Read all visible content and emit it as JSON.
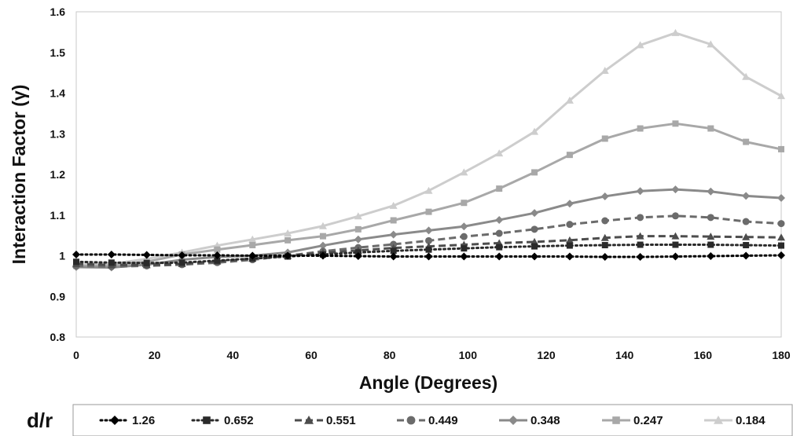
{
  "chart_data": {
    "type": "line",
    "xlabel": "Angle (Degrees)",
    "ylabel": "Interaction Factor (γ)",
    "xlim": [
      0,
      180
    ],
    "ylim": [
      0.8,
      1.6
    ],
    "xticks": [
      "0",
      "20",
      "40",
      "60",
      "80",
      "100",
      "120",
      "140",
      "160",
      "180"
    ],
    "yticks": [
      "0.8",
      "0.9",
      "1",
      "1.1",
      "1.2",
      "1.3",
      "1.4",
      "1.5",
      "1.6"
    ],
    "grid": false,
    "legend_title": "d/r",
    "legend_position": "bottom",
    "x": [
      0,
      9,
      18,
      27,
      36,
      45,
      54,
      63,
      72,
      81,
      90,
      99,
      108,
      117,
      126,
      135,
      144,
      153,
      162,
      171,
      180
    ],
    "series": [
      {
        "name": "1.26",
        "color": "#000000",
        "line": "dotted",
        "marker": "diamond",
        "values": [
          1.003,
          1.003,
          1.002,
          1.001,
          1.001,
          1.0,
          1.0,
          1.0,
          0.999,
          0.998,
          0.998,
          0.998,
          0.998,
          0.998,
          0.998,
          0.997,
          0.997,
          0.998,
          0.999,
          1.0,
          1.001
        ]
      },
      {
        "name": "0.652",
        "color": "#2a2a2a",
        "line": "dotted",
        "marker": "square",
        "values": [
          0.985,
          0.983,
          0.982,
          0.983,
          0.988,
          0.993,
          0.998,
          1.003,
          1.008,
          1.012,
          1.015,
          1.018,
          1.021,
          1.023,
          1.025,
          1.026,
          1.027,
          1.027,
          1.027,
          1.026,
          1.025
        ]
      },
      {
        "name": "0.551",
        "color": "#4d4d4d",
        "line": "dashed",
        "marker": "triangle",
        "values": [
          0.98,
          0.977,
          0.977,
          0.98,
          0.986,
          0.993,
          1.0,
          1.007,
          1.013,
          1.019,
          1.023,
          1.027,
          1.031,
          1.034,
          1.038,
          1.044,
          1.048,
          1.048,
          1.047,
          1.046,
          1.045
        ]
      },
      {
        "name": "0.449",
        "color": "#6b6b6b",
        "line": "dashed",
        "marker": "circle",
        "values": [
          0.975,
          0.973,
          0.975,
          0.978,
          0.983,
          0.99,
          1.0,
          1.011,
          1.02,
          1.028,
          1.037,
          1.047,
          1.055,
          1.065,
          1.077,
          1.086,
          1.094,
          1.098,
          1.094,
          1.084,
          1.079
        ]
      },
      {
        "name": "0.348",
        "color": "#8a8a8a",
        "line": "solid",
        "marker": "diamond",
        "values": [
          0.972,
          0.971,
          0.978,
          0.99,
          0.997,
          1.0,
          1.008,
          1.025,
          1.04,
          1.052,
          1.062,
          1.072,
          1.088,
          1.105,
          1.128,
          1.146,
          1.159,
          1.163,
          1.158,
          1.147,
          1.142
        ]
      },
      {
        "name": "0.247",
        "color": "#a8a8a8",
        "line": "solid",
        "marker": "square",
        "values": [
          0.975,
          0.976,
          0.985,
          1.003,
          1.015,
          1.026,
          1.038,
          1.048,
          1.065,
          1.087,
          1.108,
          1.13,
          1.165,
          1.205,
          1.248,
          1.288,
          1.313,
          1.325,
          1.313,
          1.28,
          1.262
        ]
      },
      {
        "name": "0.184",
        "color": "#cdcdcd",
        "line": "solid",
        "marker": "triangle",
        "values": [
          0.978,
          0.98,
          0.992,
          1.008,
          1.025,
          1.04,
          1.055,
          1.073,
          1.097,
          1.123,
          1.16,
          1.205,
          1.252,
          1.305,
          1.382,
          1.455,
          1.518,
          1.548,
          1.52,
          1.44,
          1.393
        ]
      }
    ]
  }
}
